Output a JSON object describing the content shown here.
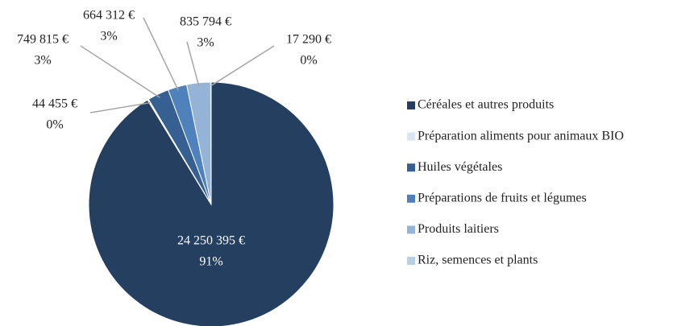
{
  "chart_data": {
    "type": "pie",
    "categories": [
      "Céréales et autres produits",
      "Préparation aliments pour animaux BIO",
      "Huiles végétales",
      "Préparations de fruits et légumes",
      "Produits laitiers",
      "Riz, semences et plants"
    ],
    "values": [
      24250395,
      44455,
      749815,
      664312,
      835794,
      17290
    ],
    "value_labels": [
      "24 250 395 €",
      "44 455 €",
      "749 815 €",
      "664 312 €",
      "835 794 €",
      "17 290 €"
    ],
    "percent_labels": [
      "91%",
      "0%",
      "3%",
      "3%",
      "3%",
      "0%"
    ],
    "colors": [
      "#243f60",
      "#dce6f2",
      "#376092",
      "#4f81bd",
      "#95b3d7",
      "#b9cde5"
    ],
    "legend": "right"
  }
}
